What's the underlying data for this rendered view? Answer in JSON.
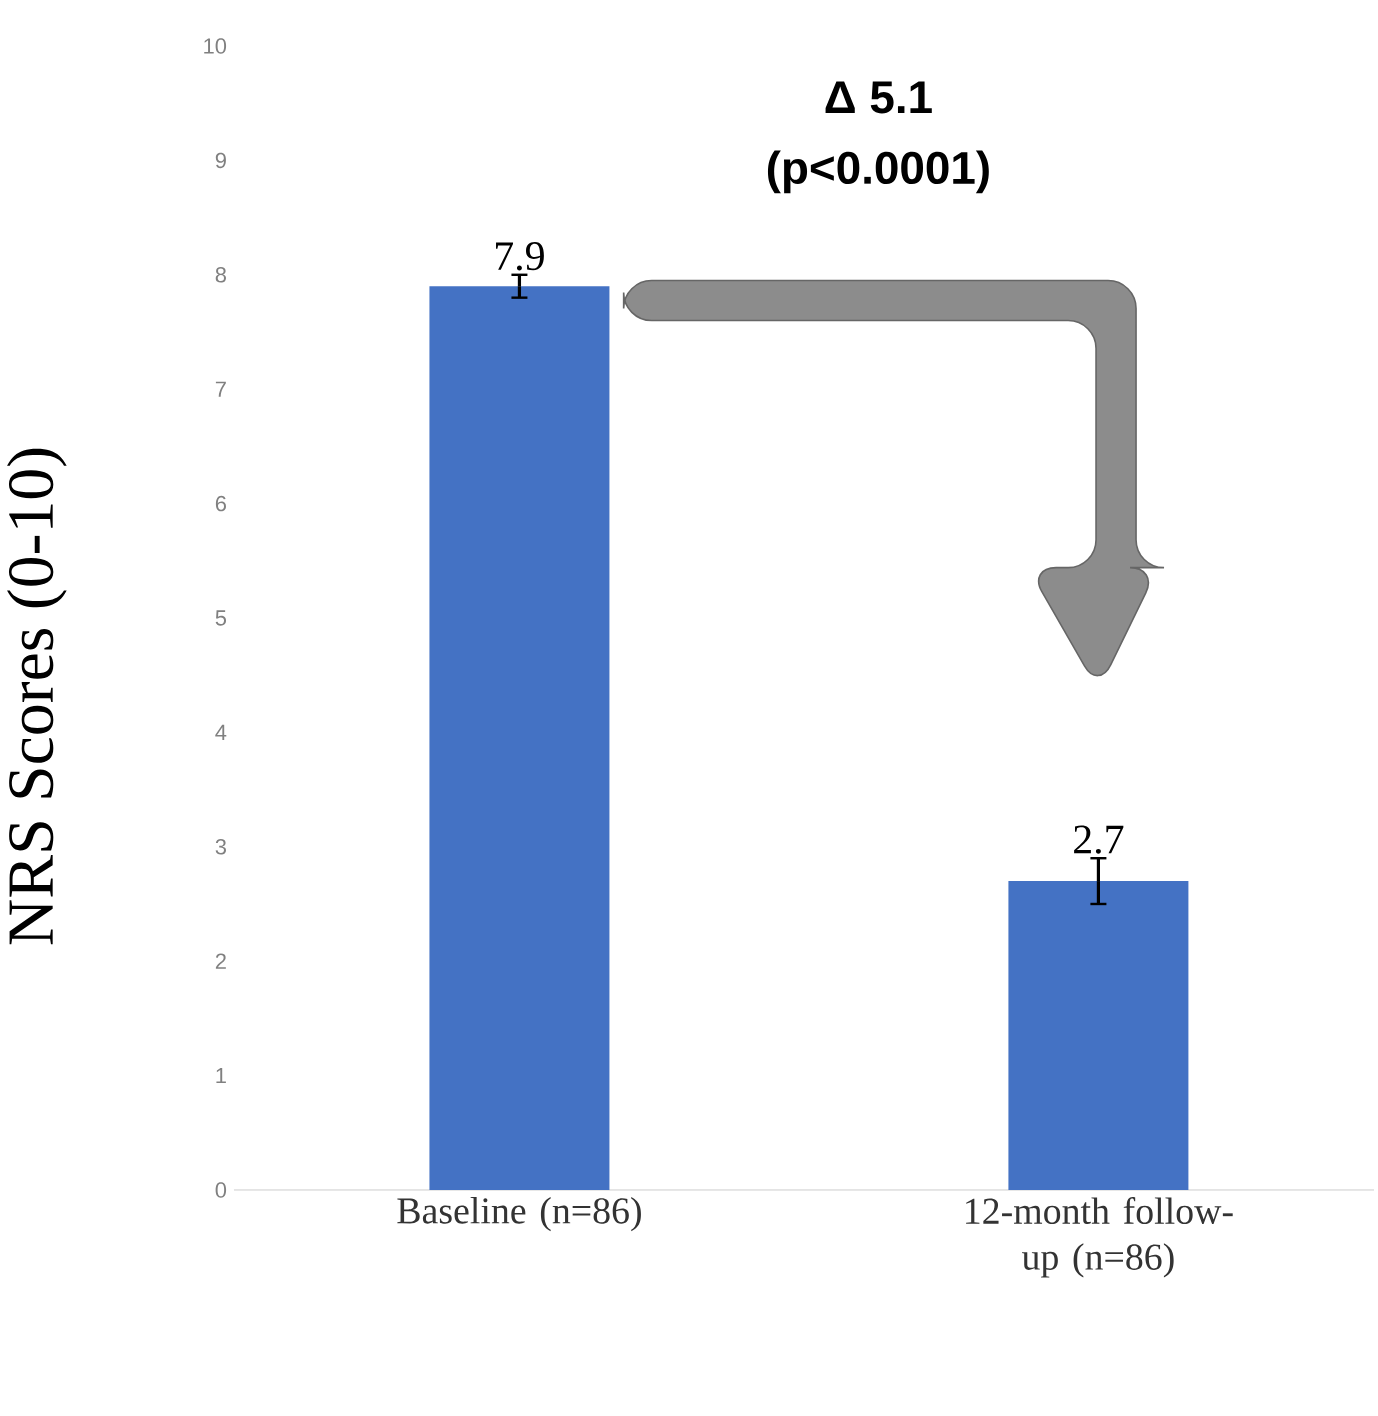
{
  "chart_data": {
    "type": "bar",
    "ylabel": "NRS Scores (0-10)",
    "categories": [
      "Baseline (n=86)",
      "12-month follow-up (n=86)"
    ],
    "values": [
      7.9,
      2.7
    ],
    "errors": [
      0.1,
      0.2
    ],
    "value_labels": [
      "7.9",
      "2.7"
    ],
    "color": "#4472c4",
    "ylim": [
      0,
      10
    ],
    "yticks": [
      0,
      1,
      2,
      3,
      4,
      5,
      6,
      7,
      8,
      9,
      10
    ],
    "grid": false,
    "annotations": [
      "Δ 5.1",
      "(p<0.0001)"
    ]
  }
}
